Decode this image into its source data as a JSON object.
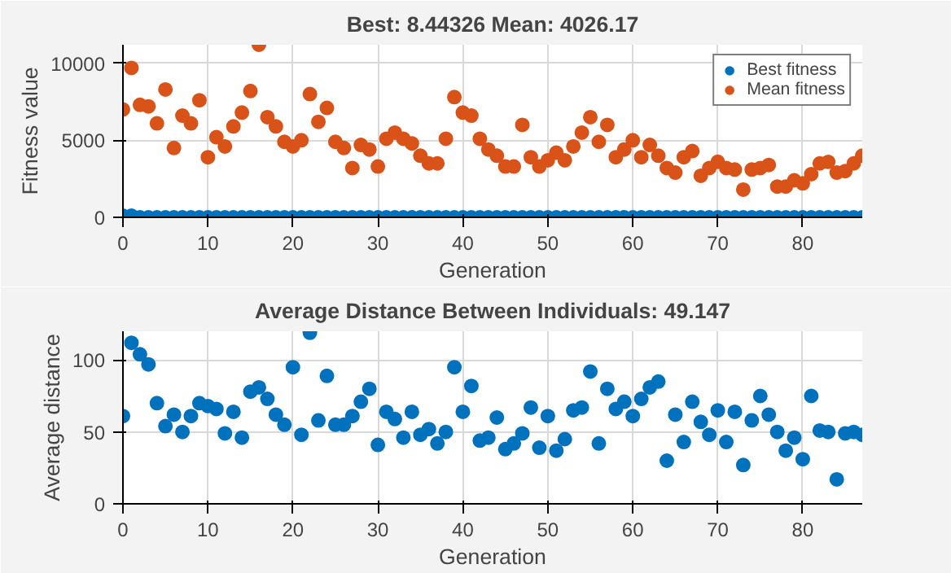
{
  "chart_data": [
    {
      "type": "scatter",
      "title": "Best: 8.44326 Mean: 4026.17",
      "xlabel": "Generation",
      "ylabel": "Fitness value",
      "x": [
        0,
        1,
        2,
        3,
        4,
        5,
        6,
        7,
        8,
        9,
        10,
        11,
        12,
        13,
        14,
        15,
        16,
        17,
        18,
        19,
        20,
        21,
        22,
        23,
        24,
        25,
        26,
        27,
        28,
        29,
        30,
        31,
        32,
        33,
        34,
        35,
        36,
        37,
        38,
        39,
        40,
        41,
        42,
        43,
        44,
        45,
        46,
        47,
        48,
        49,
        50,
        51,
        52,
        53,
        54,
        55,
        56,
        57,
        58,
        59,
        60,
        61,
        62,
        63,
        64,
        65,
        66,
        67,
        68,
        69,
        70,
        71,
        72,
        73,
        74,
        75,
        76,
        77,
        78,
        79,
        80,
        81,
        82,
        83,
        84,
        85,
        86,
        87
      ],
      "series": [
        {
          "name": "Best fitness",
          "color": "#0072bd",
          "values": [
            100,
            100,
            0,
            0,
            0,
            0,
            0,
            0,
            0,
            0,
            0,
            0,
            0,
            0,
            0,
            0,
            0,
            0,
            0,
            0,
            0,
            0,
            0,
            0,
            0,
            0,
            0,
            0,
            0,
            0,
            0,
            0,
            0,
            0,
            0,
            0,
            0,
            0,
            0,
            0,
            0,
            0,
            0,
            0,
            0,
            0,
            0,
            0,
            0,
            0,
            0,
            0,
            0,
            0,
            0,
            0,
            0,
            0,
            0,
            0,
            0,
            0,
            0,
            0,
            0,
            0,
            0,
            0,
            0,
            0,
            0,
            0,
            0,
            0,
            0,
            0,
            0,
            0,
            0,
            0,
            0,
            0,
            0,
            0,
            0,
            0,
            0,
            0
          ]
        },
        {
          "name": "Mean fitness",
          "color": "#d95319",
          "values": [
            7000,
            9700,
            7300,
            7200,
            6100,
            8300,
            4500,
            6600,
            6100,
            7600,
            3900,
            5200,
            4600,
            5900,
            6800,
            8200,
            11200,
            6500,
            5900,
            4900,
            4600,
            5000,
            8000,
            6200,
            7100,
            4900,
            4500,
            3200,
            4700,
            4400,
            3300,
            5100,
            5500,
            5100,
            4800,
            4000,
            3500,
            3500,
            5100,
            7800,
            6800,
            6600,
            5100,
            4400,
            4000,
            3300,
            3300,
            6000,
            3900,
            3300,
            3700,
            4200,
            3700,
            4600,
            5500,
            6500,
            4900,
            6000,
            3900,
            4400,
            5000,
            3900,
            4700,
            4000,
            3200,
            2900,
            3900,
            4300,
            2700,
            3200,
            3600,
            3200,
            3100,
            1800,
            3100,
            3200,
            3400,
            2000,
            2000,
            2400,
            2200,
            2800,
            3500,
            3600,
            2900,
            3000,
            3500,
            4000
          ]
        }
      ],
      "xlim": [
        0,
        87
      ],
      "ylim": [
        0,
        11200
      ],
      "xticks": [
        0,
        10,
        20,
        30,
        40,
        50,
        60,
        70,
        80
      ],
      "yticks": [
        0,
        5000,
        10000
      ],
      "grid": true,
      "legend": "top right",
      "marker": "circle"
    },
    {
      "type": "scatter",
      "title": "Average Distance Between Individuals: 49.147",
      "xlabel": "Generation",
      "ylabel": "Average distance",
      "x": [
        0,
        1,
        2,
        3,
        4,
        5,
        6,
        7,
        8,
        9,
        10,
        11,
        12,
        13,
        14,
        15,
        16,
        17,
        18,
        19,
        20,
        21,
        22,
        23,
        24,
        25,
        26,
        27,
        28,
        29,
        30,
        31,
        32,
        33,
        34,
        35,
        36,
        37,
        38,
        39,
        40,
        41,
        42,
        43,
        44,
        45,
        46,
        47,
        48,
        49,
        50,
        51,
        52,
        53,
        54,
        55,
        56,
        57,
        58,
        59,
        60,
        61,
        62,
        63,
        64,
        65,
        66,
        67,
        68,
        69,
        70,
        71,
        72,
        73,
        74,
        75,
        76,
        77,
        78,
        79,
        80,
        81,
        82,
        83,
        84,
        85,
        86,
        87
      ],
      "series": [
        {
          "color": "#0072bd",
          "values": [
            61,
            112,
            104,
            97,
            70,
            54,
            62,
            50,
            61,
            70,
            68,
            66,
            49,
            64,
            46,
            78,
            81,
            73,
            62,
            55,
            95,
            48,
            119,
            58,
            89,
            55,
            55,
            61,
            71,
            80,
            41,
            64,
            59,
            46,
            64,
            48,
            52,
            42,
            50,
            95,
            64,
            82,
            44,
            46,
            60,
            38,
            42,
            49,
            67,
            39,
            61,
            37,
            45,
            65,
            67,
            92,
            42,
            80,
            66,
            71,
            61,
            73,
            81,
            85,
            30,
            62,
            43,
            71,
            57,
            48,
            65,
            43,
            64,
            27,
            58,
            75,
            62,
            50,
            37,
            46,
            31,
            75,
            51,
            50,
            17,
            49,
            50,
            48
          ]
        }
      ],
      "xlim": [
        0,
        87
      ],
      "ylim": [
        0,
        120
      ],
      "xticks": [
        0,
        10,
        20,
        30,
        40,
        50,
        60,
        70,
        80
      ],
      "yticks": [
        0,
        50,
        100
      ],
      "grid": true,
      "marker": "circle"
    }
  ]
}
